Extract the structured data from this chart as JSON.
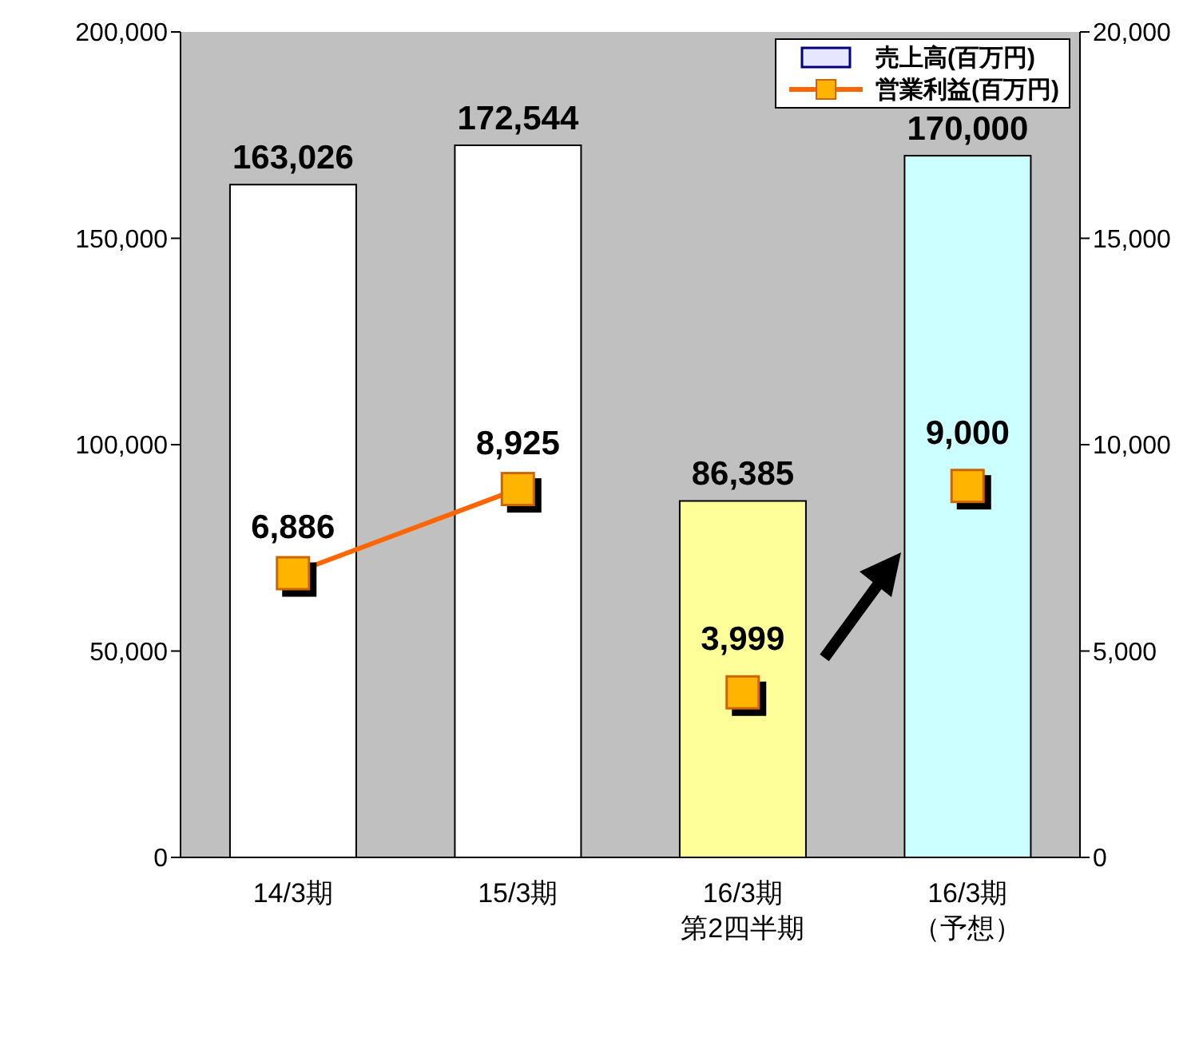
{
  "chart_data": {
    "type": "bar",
    "categories": [
      "14/3期",
      "15/3期",
      "16/3期第2四半期",
      "16/3期（予想）"
    ],
    "series": [
      {
        "name": "売上高(百万円)",
        "color": "#e6e6ff",
        "colors": [
          "#ffffff",
          "#ffffff",
          "#ffff99",
          "#ccffff"
        ],
        "values": [
          163026,
          172544,
          86385,
          170000
        ],
        "value_labels": [
          "163,026",
          "172,544",
          "86,385",
          "170,000"
        ]
      },
      {
        "name": "営業利益(百万円)",
        "type": "line",
        "axis": "y2",
        "color": "#ff6600",
        "values": [
          6886,
          8925,
          null,
          null
        ],
        "value_labels": [
          "6,886",
          "8,925",
          null,
          null
        ]
      },
      {
        "type": "scatter",
        "axis": "y2",
        "color": "#ffb400",
        "values": [
          null,
          null,
          3999,
          9000
        ],
        "value_labels": [
          null,
          null,
          "3,999",
          "9,000"
        ]
      }
    ],
    "ylim": [
      0,
      200000
    ],
    "yticks": [
      {
        "value": 0,
        "label": "0"
      },
      {
        "value": 50000,
        "label": "50,000"
      },
      {
        "value": 100000,
        "label": "100,000"
      },
      {
        "value": 150000,
        "label": "150,000"
      },
      {
        "value": 200000,
        "label": "200,000"
      }
    ],
    "y2lim": [
      0,
      20000
    ],
    "y2ticks": [
      {
        "value": 0,
        "label": "0"
      },
      {
        "value": 5000,
        "label": "5,000"
      },
      {
        "value": 10000,
        "label": "10,000"
      },
      {
        "value": 15000,
        "label": "15,000"
      },
      {
        "value": 20000,
        "label": "20,000"
      }
    ],
    "legend": "top right",
    "marker": "square",
    "grid": false
  }
}
